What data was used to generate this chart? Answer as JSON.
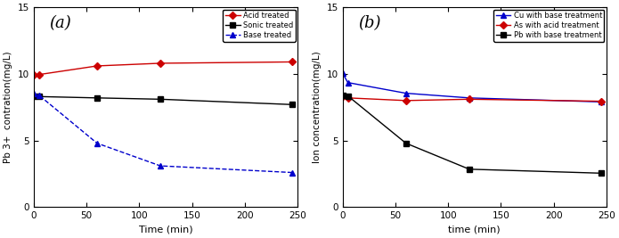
{
  "panel_a": {
    "label": "(a)",
    "xlabel": "Time (min)",
    "ylabel": "Pb 3+  contration(mg/L)",
    "xlim": [
      0,
      250
    ],
    "ylim": [
      0,
      15
    ],
    "yticks": [
      0,
      5,
      10,
      15
    ],
    "xticks": [
      0,
      50,
      100,
      150,
      200,
      250
    ],
    "series": [
      {
        "label": "Acid treated",
        "color": "#cc0000",
        "marker": "D",
        "linestyle": "-",
        "x": [
          0,
          5,
          60,
          120,
          245
        ],
        "y": [
          9.95,
          9.95,
          10.6,
          10.8,
          10.9
        ]
      },
      {
        "label": "Sonic treated",
        "color": "#000000",
        "marker": "s",
        "linestyle": "-",
        "x": [
          0,
          5,
          60,
          120,
          245
        ],
        "y": [
          8.3,
          8.3,
          8.2,
          8.1,
          7.7
        ]
      },
      {
        "label": "Base treated",
        "color": "#0000cc",
        "marker": "^",
        "linestyle": "--",
        "x": [
          0,
          5,
          60,
          120,
          245
        ],
        "y": [
          8.5,
          8.4,
          4.8,
          3.1,
          2.6
        ]
      }
    ]
  },
  "panel_b": {
    "label": "(b)",
    "xlabel": "time (min)",
    "ylabel": "Ion concentration(mg/L)",
    "xlim": [
      0,
      250
    ],
    "ylim": [
      0,
      15
    ],
    "yticks": [
      0,
      5,
      10,
      15
    ],
    "xticks": [
      0,
      50,
      100,
      150,
      200,
      250
    ],
    "series": [
      {
        "label": "Cu with base treatment",
        "color": "#0000cc",
        "marker": "^",
        "linestyle": "-",
        "x": [
          0,
          5,
          60,
          120,
          245
        ],
        "y": [
          10.05,
          9.35,
          8.55,
          8.2,
          7.9
        ]
      },
      {
        "label": "As with acid treatment",
        "color": "#cc0000",
        "marker": "D",
        "linestyle": "-",
        "x": [
          0,
          5,
          60,
          120,
          245
        ],
        "y": [
          8.3,
          8.2,
          8.0,
          8.1,
          7.95
        ]
      },
      {
        "label": "Pb with base treatment",
        "color": "#000000",
        "marker": "s",
        "linestyle": "-",
        "x": [
          0,
          5,
          60,
          120,
          245
        ],
        "y": [
          8.4,
          8.35,
          4.8,
          2.85,
          2.55
        ]
      }
    ]
  },
  "background_color": "#ffffff",
  "figsize": [
    6.95,
    2.67
  ],
  "dpi": 100
}
